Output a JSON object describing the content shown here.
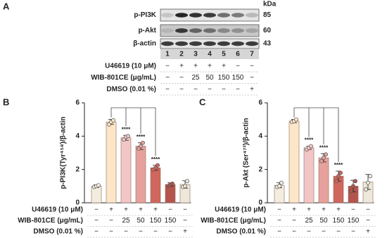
{
  "blot": {
    "panel": "A",
    "kda_header": "kDa",
    "bands": [
      {
        "label": "p-PI3K",
        "kda": 85
      },
      {
        "label": "p-Akt",
        "kda": 60
      },
      {
        "label": "β-actin",
        "kda": 43
      }
    ],
    "lanes": [
      1,
      2,
      3,
      4,
      5,
      6,
      7
    ],
    "treatments": [
      {
        "label": "U46619 (10 μM)",
        "cells": [
          "−",
          "+",
          "+",
          "+",
          "+",
          "−",
          "−"
        ]
      },
      {
        "label": "WIB-801CE (μg/mL)",
        "cells": [
          "−",
          "−",
          "25",
          "50",
          "150",
          "150",
          "−"
        ]
      },
      {
        "label": "DMSO (0.01 %)",
        "cells": [
          "−",
          "−",
          "−",
          "−",
          "−",
          "−",
          "+"
        ]
      }
    ]
  },
  "chart_data": [
    {
      "type": "bar",
      "panel": "B",
      "y_label": "p-PI3K(Tyr⁴⁵⁸)/β-actin",
      "ylim": [
        0,
        6
      ],
      "yticks": [
        0,
        2,
        4,
        6
      ],
      "colors": [
        "#f2eddf",
        "#fde6c8",
        "#f2c6c6",
        "#e7a19c",
        "#d0665c",
        "#b4554d",
        "#ede8da"
      ],
      "values": [
        1.0,
        4.85,
        3.9,
        3.4,
        2.1,
        1.1,
        1.1
      ],
      "errors": [
        0.08,
        0.15,
        0.15,
        0.2,
        0.15,
        0.1,
        0.22
      ],
      "points": [
        [
          0.95,
          1.0,
          1.05
        ],
        [
          4.7,
          4.85,
          4.95
        ],
        [
          3.8,
          3.95,
          4.0
        ],
        [
          3.25,
          3.4,
          3.6
        ],
        [
          2.0,
          2.1,
          2.25
        ],
        [
          1.0,
          1.1,
          1.15
        ],
        [
          0.95,
          1.0,
          1.3
        ]
      ],
      "significance": [
        null,
        null,
        "****",
        "****",
        "****",
        null,
        null
      ],
      "treatments": [
        {
          "label": "U46619 (10 μM)",
          "cells": [
            "−",
            "+",
            "+",
            "+",
            "+",
            "−",
            "−"
          ]
        },
        {
          "label": "WIB-801CE (μg/mL)",
          "cells": [
            "−",
            "−",
            "25",
            "50",
            "150",
            "150",
            "−"
          ]
        },
        {
          "label": "DMSO (0.01 %)",
          "cells": [
            "−",
            "−",
            "−",
            "−",
            "−",
            "−",
            "+"
          ]
        }
      ]
    },
    {
      "type": "bar",
      "panel": "C",
      "y_label": "p-Akt (Ser⁴⁷³)/β-actin",
      "ylim": [
        0,
        6
      ],
      "yticks": [
        0,
        2,
        4,
        6
      ],
      "colors": [
        "#f2eddf",
        "#fde6c8",
        "#f2c6c6",
        "#e7a19c",
        "#d0665c",
        "#b4554d",
        "#ede8da"
      ],
      "values": [
        1.05,
        4.9,
        3.3,
        2.7,
        1.6,
        1.0,
        1.25
      ],
      "errors": [
        0.15,
        0.1,
        0.1,
        0.25,
        0.3,
        0.35,
        0.45
      ],
      "points": [
        [
          0.95,
          1.0,
          1.2
        ],
        [
          4.85,
          4.9,
          5.0
        ],
        [
          3.2,
          3.3,
          3.4
        ],
        [
          2.5,
          2.7,
          2.9
        ],
        [
          1.3,
          1.6,
          1.8
        ],
        [
          0.7,
          1.0,
          1.3
        ],
        [
          0.8,
          1.2,
          1.6
        ]
      ],
      "significance": [
        null,
        null,
        "****",
        "****",
        "****",
        null,
        null
      ],
      "treatments": [
        {
          "label": "U46619 (10 μM)",
          "cells": [
            "−",
            "+",
            "+",
            "+",
            "+",
            "−",
            "−"
          ]
        },
        {
          "label": "WIB-801CE (μg/mL)",
          "cells": [
            "−",
            "−",
            "25",
            "50",
            "150",
            "150",
            "−"
          ]
        },
        {
          "label": "DMSO (0.01 %)",
          "cells": [
            "−",
            "−",
            "−",
            "−",
            "−",
            "−",
            "+"
          ]
        }
      ]
    }
  ]
}
